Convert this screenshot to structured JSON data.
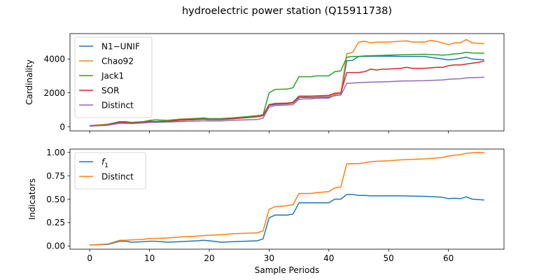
{
  "figure": {
    "title": "hydroelectric power station (Q15911738)"
  },
  "chart_data": [
    {
      "type": "line",
      "panel": "top",
      "xlabel": "",
      "ylabel": "Cardinality",
      "xlim": [
        -3.3,
        69.3
      ],
      "ylim": [
        -250,
        5500
      ],
      "xticks": [
        0,
        10,
        20,
        30,
        40,
        50,
        60
      ],
      "yticks": [
        0,
        2000,
        4000
      ],
      "ytick_labels": [
        "0",
        "2000",
        "4000"
      ],
      "xtick_labels_visible": false,
      "legend_position": "upper left",
      "series": [
        {
          "name": "N1−UNIF",
          "color": "#1f77b4",
          "x": [
            0,
            3,
            5,
            6,
            7,
            9,
            10,
            11,
            13,
            15,
            18,
            19,
            20,
            22,
            24,
            28,
            29,
            30,
            31,
            33,
            34,
            35,
            36,
            37,
            40,
            42,
            43,
            44,
            45,
            46,
            48,
            50,
            52,
            56,
            58,
            59,
            60,
            61,
            63,
            64,
            66
          ],
          "y": [
            50,
            100,
            250,
            250,
            200,
            250,
            300,
            300,
            320,
            380,
            420,
            450,
            430,
            430,
            480,
            600,
            650,
            1250,
            1320,
            1360,
            1400,
            1720,
            1730,
            1720,
            1750,
            1900,
            3900,
            3920,
            4150,
            4150,
            4170,
            4170,
            4150,
            4150,
            4050,
            4000,
            3950,
            3980,
            4100,
            4000,
            3950
          ]
        },
        {
          "name": "Chao92",
          "color": "#ff7f0e",
          "x": [
            0,
            3,
            5,
            6,
            7,
            9,
            10,
            11,
            13,
            15,
            18,
            19,
            20,
            22,
            24,
            28,
            29,
            30,
            31,
            33,
            34,
            35,
            36,
            37,
            40,
            42,
            43,
            44,
            45,
            46,
            47,
            48,
            50,
            52,
            53,
            54,
            56,
            57,
            58,
            59,
            60,
            61,
            62,
            63,
            64,
            66
          ],
          "y": [
            50,
            150,
            300,
            280,
            250,
            300,
            380,
            400,
            380,
            450,
            500,
            520,
            480,
            470,
            520,
            620,
            700,
            1300,
            1380,
            1400,
            1450,
            1800,
            1800,
            1800,
            1820,
            2000,
            4300,
            4400,
            5000,
            5050,
            4950,
            5000,
            5000,
            5050,
            5070,
            5000,
            5000,
            5100,
            5050,
            4950,
            4850,
            4950,
            4950,
            5150,
            4950,
            4900
          ]
        },
        {
          "name": "Jack1",
          "color": "#2ca02c",
          "x": [
            0,
            3,
            5,
            6,
            7,
            9,
            10,
            11,
            13,
            15,
            18,
            19,
            20,
            22,
            24,
            28,
            29,
            30,
            31,
            33,
            34,
            35,
            36,
            37,
            38,
            40,
            41,
            42,
            43,
            44,
            45,
            46,
            48,
            50,
            52,
            56,
            58,
            59,
            60,
            61,
            62,
            63,
            64,
            66
          ],
          "y": [
            60,
            120,
            300,
            300,
            250,
            300,
            350,
            400,
            350,
            420,
            470,
            500,
            470,
            480,
            520,
            650,
            700,
            2000,
            2200,
            2220,
            2300,
            2950,
            2950,
            2950,
            3000,
            3000,
            3250,
            3300,
            4100,
            4150,
            4150,
            4180,
            4200,
            4220,
            4250,
            4280,
            4250,
            4230,
            4250,
            4300,
            4320,
            4400,
            4350,
            4340
          ]
        },
        {
          "name": "SOR",
          "color": "#d62728",
          "x": [
            0,
            3,
            5,
            6,
            7,
            9,
            10,
            11,
            13,
            15,
            18,
            19,
            20,
            22,
            24,
            28,
            29,
            30,
            31,
            33,
            34,
            35,
            36,
            37,
            38,
            40,
            41,
            42,
            43,
            44,
            45,
            46,
            47,
            48,
            49,
            50,
            52,
            53,
            54,
            56,
            58,
            59,
            60,
            61,
            62,
            63,
            64,
            65,
            66
          ],
          "y": [
            50,
            100,
            250,
            250,
            200,
            250,
            300,
            300,
            300,
            380,
            420,
            450,
            420,
            430,
            470,
            580,
            650,
            1300,
            1350,
            1380,
            1420,
            1800,
            1800,
            1800,
            1820,
            1850,
            1980,
            2000,
            3200,
            3200,
            3200,
            3250,
            3400,
            3350,
            3400,
            3400,
            3450,
            3500,
            3450,
            3450,
            3500,
            3500,
            3600,
            3650,
            3650,
            3700,
            3750,
            3800,
            3880
          ]
        },
        {
          "name": "Distinct",
          "color": "#9467bd",
          "x": [
            0,
            3,
            5,
            6,
            7,
            9,
            10,
            11,
            13,
            15,
            18,
            19,
            20,
            22,
            24,
            28,
            29,
            30,
            31,
            33,
            34,
            35,
            36,
            37,
            38,
            40,
            41,
            42,
            43,
            44,
            45,
            46,
            48,
            50,
            52,
            56,
            58,
            59,
            60,
            61,
            62,
            63,
            64,
            66
          ],
          "y": [
            30,
            80,
            200,
            200,
            180,
            220,
            250,
            250,
            270,
            300,
            330,
            350,
            340,
            340,
            380,
            420,
            500,
            1150,
            1250,
            1280,
            1300,
            1620,
            1640,
            1650,
            1680,
            1690,
            1850,
            1870,
            2550,
            2580,
            2600,
            2620,
            2640,
            2660,
            2700,
            2720,
            2750,
            2760,
            2800,
            2820,
            2830,
            2880,
            2900,
            2920
          ]
        }
      ]
    },
    {
      "type": "line",
      "panel": "bottom",
      "xlabel": "Sample Periods",
      "ylabel": "Indicators",
      "xlim": [
        -3.3,
        69.3
      ],
      "ylim": [
        -0.035,
        1.035
      ],
      "xticks": [
        0,
        10,
        20,
        30,
        40,
        50,
        60
      ],
      "xtick_labels": [
        "0",
        "10",
        "20",
        "30",
        "40",
        "50",
        "60"
      ],
      "yticks": [
        0.0,
        0.25,
        0.5,
        0.75,
        1.0
      ],
      "ytick_labels": [
        "0.00",
        "0.25",
        "0.50",
        "0.75",
        "1.00"
      ],
      "legend_position": "upper left",
      "series": [
        {
          "name": "f1",
          "legend_base": "f",
          "legend_sub": "1",
          "color": "#1f77b4",
          "x": [
            0,
            3,
            5,
            6,
            7,
            9,
            10,
            11,
            13,
            15,
            18,
            19,
            20,
            22,
            24,
            28,
            29,
            30,
            31,
            33,
            34,
            35,
            36,
            37,
            38,
            40,
            41,
            42,
            43,
            44,
            45,
            46,
            47,
            48,
            50,
            52,
            56,
            58,
            59,
            60,
            61,
            62,
            63,
            64,
            66
          ],
          "y": [
            0.01,
            0.015,
            0.05,
            0.05,
            0.04,
            0.045,
            0.05,
            0.05,
            0.04,
            0.045,
            0.055,
            0.06,
            0.055,
            0.04,
            0.045,
            0.055,
            0.075,
            0.3,
            0.33,
            0.33,
            0.34,
            0.46,
            0.46,
            0.46,
            0.46,
            0.46,
            0.5,
            0.5,
            0.55,
            0.55,
            0.54,
            0.54,
            0.535,
            0.535,
            0.535,
            0.535,
            0.53,
            0.525,
            0.52,
            0.505,
            0.51,
            0.505,
            0.525,
            0.5,
            0.49
          ]
        },
        {
          "name": "Distinct",
          "color": "#ff7f0e",
          "x": [
            0,
            3,
            5,
            6,
            7,
            9,
            10,
            11,
            13,
            15,
            18,
            19,
            20,
            22,
            24,
            28,
            29,
            30,
            31,
            33,
            34,
            35,
            36,
            37,
            38,
            40,
            41,
            42,
            43,
            44,
            45,
            46,
            47,
            48,
            50,
            52,
            56,
            58,
            59,
            60,
            61,
            62,
            63,
            64,
            65,
            66
          ],
          "y": [
            0.01,
            0.02,
            0.06,
            0.06,
            0.065,
            0.07,
            0.08,
            0.08,
            0.085,
            0.095,
            0.105,
            0.11,
            0.115,
            0.12,
            0.13,
            0.14,
            0.16,
            0.39,
            0.42,
            0.43,
            0.44,
            0.56,
            0.56,
            0.56,
            0.57,
            0.58,
            0.62,
            0.63,
            0.88,
            0.88,
            0.88,
            0.89,
            0.9,
            0.905,
            0.91,
            0.92,
            0.93,
            0.94,
            0.945,
            0.96,
            0.97,
            0.975,
            0.99,
            0.995,
            1.0,
            1.0
          ]
        }
      ]
    }
  ]
}
